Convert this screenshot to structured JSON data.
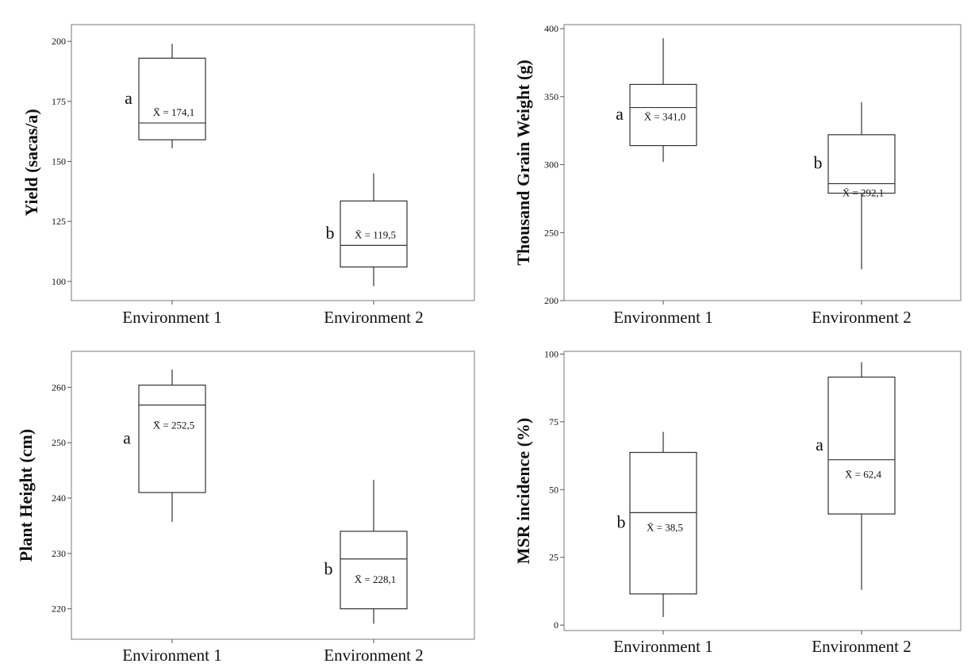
{
  "chart_data": [
    {
      "type": "box",
      "ylabel": "Yield (sacas/a)",
      "categories": [
        "Environment 1",
        "Environment 2"
      ],
      "ylim": [
        92,
        207
      ],
      "yticks": [
        100,
        125,
        150,
        175,
        200
      ],
      "boxes": [
        {
          "min": 155.5,
          "q1": 159,
          "median": 166,
          "q3": 193,
          "max": 199,
          "mean_label": "X̄ = 174,1",
          "group": "a"
        },
        {
          "min": 98,
          "q1": 106,
          "median": 115,
          "q3": 133.5,
          "max": 145,
          "mean_label": "X̄ = 119,5",
          "group": "b"
        }
      ]
    },
    {
      "type": "box",
      "ylabel": "Thousand Grain Weight (g)",
      "categories": [
        "Environment 1",
        "Environment 2"
      ],
      "ylim": [
        200,
        403
      ],
      "yticks": [
        200,
        250,
        300,
        350,
        400
      ],
      "boxes": [
        {
          "min": 302,
          "q1": 314,
          "median": 342,
          "q3": 359,
          "max": 393,
          "mean_label": "X̄ = 341,0",
          "group": "a"
        },
        {
          "min": 223,
          "q1": 279,
          "median": 286,
          "q3": 322,
          "max": 346,
          "mean_label": "X̄ = 292,1",
          "group": "b"
        }
      ]
    },
    {
      "type": "box",
      "ylabel": "Plant Height (cm)",
      "categories": [
        "Environment 1",
        "Environment 2"
      ],
      "ylim": [
        214.5,
        266.5
      ],
      "yticks": [
        220,
        230,
        240,
        250,
        260
      ],
      "boxes": [
        {
          "min": 235.7,
          "q1": 241,
          "median": 256.8,
          "q3": 260.4,
          "max": 263.2,
          "mean_label": "X̄ = 252,5",
          "group": "a"
        },
        {
          "min": 217.3,
          "q1": 220,
          "median": 229,
          "q3": 234,
          "max": 243.3,
          "mean_label": "X̄ = 228,1",
          "group": "b"
        }
      ]
    },
    {
      "type": "box",
      "ylabel": "MSR incidence (%)",
      "categories": [
        "Environment 1",
        "Environment 2"
      ],
      "ylim": [
        -2,
        101
      ],
      "yticks": [
        0,
        25,
        50,
        75,
        100
      ],
      "boxes": [
        {
          "min": 3,
          "q1": 11.5,
          "median": 41.5,
          "q3": 63.7,
          "max": 71.3,
          "mean_label": "X̄ = 38,5",
          "group": "b"
        },
        {
          "min": 13,
          "q1": 41,
          "median": 61,
          "q3": 91.5,
          "max": 97,
          "mean_label": "X̄ = 62,4",
          "group": "a"
        }
      ]
    }
  ]
}
